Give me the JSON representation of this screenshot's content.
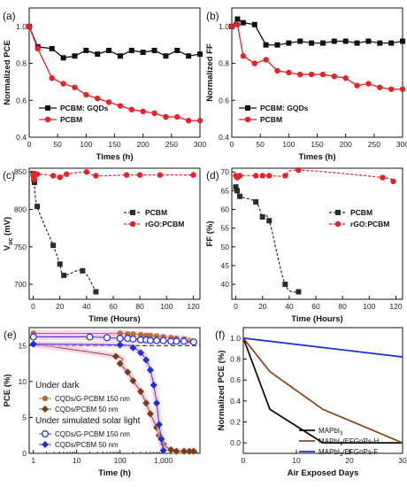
{
  "colors": {
    "black": "#111111",
    "red": "#e8202a",
    "pcbm_dark": "#2b2b2b",
    "brown": "#8a4a22",
    "blue": "#1a2ee0",
    "brown_dot": "#b86b35",
    "diamond": "#7b3d10"
  },
  "chart_data": [
    {
      "panel": "(a)",
      "type": "line",
      "xlabel": "Times (h)",
      "ylabel": "Normalized PCE",
      "xlim": [
        0,
        300
      ],
      "ylim": [
        0.4,
        1.1
      ],
      "xticks": [
        0,
        50,
        100,
        150,
        200,
        250,
        300
      ],
      "yticks": [
        0.4,
        0.6,
        0.8,
        1.0
      ],
      "legend": "lower-left",
      "grid": false,
      "series": [
        {
          "name": "PCBM: GQDs",
          "marker": "square",
          "color": "#111111",
          "x": [
            0,
            15,
            40,
            60,
            80,
            100,
            120,
            140,
            160,
            180,
            200,
            220,
            240,
            260,
            280,
            300
          ],
          "y": [
            1.0,
            0.89,
            0.88,
            0.83,
            0.84,
            0.87,
            0.85,
            0.87,
            0.84,
            0.87,
            0.86,
            0.87,
            0.84,
            0.87,
            0.84,
            0.85
          ]
        },
        {
          "name": "PCBM",
          "marker": "circle",
          "color": "#e8202a",
          "x": [
            0,
            15,
            40,
            60,
            80,
            100,
            120,
            140,
            160,
            180,
            200,
            220,
            240,
            260,
            280,
            300
          ],
          "y": [
            1.0,
            0.88,
            0.72,
            0.69,
            0.67,
            0.63,
            0.61,
            0.59,
            0.57,
            0.55,
            0.54,
            0.53,
            0.51,
            0.51,
            0.49,
            0.49
          ]
        }
      ]
    },
    {
      "panel": "(b)",
      "type": "line",
      "xlabel": "Times (h)",
      "ylabel": "Normalized FF",
      "xlim": [
        0,
        300
      ],
      "ylim": [
        0.4,
        1.1
      ],
      "xticks": [
        0,
        50,
        100,
        150,
        200,
        250,
        300
      ],
      "yticks": [
        0.4,
        0.6,
        0.8,
        1.0
      ],
      "legend": "lower-left",
      "grid": false,
      "series": [
        {
          "name": "PCBM: GQDs",
          "marker": "square",
          "color": "#111111",
          "x": [
            0,
            10,
            20,
            40,
            60,
            80,
            100,
            120,
            140,
            160,
            180,
            200,
            220,
            240,
            260,
            280,
            300
          ],
          "y": [
            1.0,
            1.04,
            1.02,
            1.01,
            0.9,
            0.9,
            0.91,
            0.92,
            0.91,
            0.91,
            0.92,
            0.92,
            0.91,
            0.92,
            0.91,
            0.91,
            0.92
          ]
        },
        {
          "name": "PCBM",
          "marker": "circle",
          "color": "#e8202a",
          "x": [
            0,
            10,
            20,
            40,
            60,
            80,
            100,
            120,
            140,
            160,
            180,
            200,
            220,
            240,
            260,
            280,
            300
          ],
          "y": [
            1.0,
            1.01,
            0.84,
            0.8,
            0.82,
            0.76,
            0.75,
            0.74,
            0.74,
            0.74,
            0.73,
            0.72,
            0.68,
            0.69,
            0.67,
            0.66,
            0.66
          ]
        }
      ]
    },
    {
      "panel": "(c)",
      "type": "line",
      "xlabel": "Time (Hours)",
      "ylabel": "V",
      "ylabel_sub": "oc",
      "ylabel_unit": " (mV)",
      "xlim": [
        -3,
        125
      ],
      "ylim": [
        680,
        855
      ],
      "xticks": [
        0,
        20,
        40,
        60,
        80,
        100,
        120
      ],
      "yticks": [
        700,
        750,
        800,
        850
      ],
      "legend": "upper-right-inside",
      "grid": false,
      "series": [
        {
          "name": "PCBM",
          "marker": "square",
          "color": "#2b2b2b",
          "dashed": true,
          "x": [
            0,
            0.5,
            1,
            3,
            15,
            20,
            23,
            37,
            47
          ],
          "y": [
            848,
            840,
            836,
            804,
            752,
            727,
            712,
            718,
            690
          ]
        },
        {
          "name": "rGO:PCBM",
          "marker": "circle",
          "color": "#e8202a",
          "dashed": true,
          "x": [
            0,
            0.5,
            1,
            3,
            15,
            20,
            25,
            40,
            47,
            70,
            80,
            95,
            120
          ],
          "y": [
            845,
            848,
            840,
            847,
            845,
            843,
            847,
            850,
            845,
            846,
            846,
            846,
            846
          ]
        }
      ]
    },
    {
      "panel": "(d)",
      "type": "line",
      "xlabel": "Time (Hours)",
      "ylabel": "FF (%)",
      "xlim": [
        -3,
        125
      ],
      "ylim": [
        36,
        71
      ],
      "xticks": [
        0,
        20,
        40,
        60,
        80,
        100,
        120
      ],
      "yticks": [
        40,
        45,
        50,
        55,
        60,
        65,
        70
      ],
      "legend": "upper-right-inside",
      "grid": false,
      "series": [
        {
          "name": "PCBM",
          "marker": "square",
          "color": "#2b2b2b",
          "dashed": true,
          "x": [
            0,
            1,
            3,
            15,
            20,
            25,
            37,
            47
          ],
          "y": [
            66,
            65,
            63.5,
            62,
            58,
            57,
            40,
            38
          ]
        },
        {
          "name": "rGO:PCBM",
          "marker": "circle",
          "color": "#e8202a",
          "dashed": true,
          "x": [
            0,
            1,
            3,
            15,
            20,
            25,
            37,
            47,
            110,
            118
          ],
          "y": [
            69,
            68.5,
            69,
            69,
            69,
            69,
            69,
            70.5,
            68.5,
            67.5
          ]
        }
      ]
    },
    {
      "panel": "(e)",
      "type": "line",
      "xlabel": "Time (h)",
      "ylabel": "PCE (%)",
      "xscale": "log",
      "xlim": [
        0.8,
        7000
      ],
      "ylim": [
        0,
        17.5
      ],
      "xticks": [
        1,
        10,
        100,
        1000
      ],
      "xticklabels": [
        "1",
        "10",
        "100",
        "1,000"
      ],
      "yticks": [
        0,
        5,
        10,
        15
      ],
      "grid": false,
      "ref_line": {
        "y": 15,
        "style": "dashed"
      },
      "annotations": [
        "Under dark",
        "Under simulated solar light"
      ],
      "series": [
        {
          "name": "CQDs/G-PCBM 150 nm",
          "group": "Under dark",
          "marker": "circle",
          "color": "#b86b35",
          "x": [
            1,
            100,
            150,
            200,
            300,
            400,
            500,
            700,
            1000,
            1500,
            2000,
            3000,
            4000,
            5000
          ],
          "y": [
            16.7,
            16.7,
            16.6,
            16.6,
            16.5,
            16.4,
            16.4,
            16.3,
            16.2,
            16.1,
            16.0,
            15.9,
            15.7,
            15.5
          ]
        },
        {
          "name": "CQDs/PCBM 50 nm",
          "group": "Under dark",
          "marker": "diamond",
          "color": "#7b3d10",
          "x": [
            1,
            80,
            100,
            150,
            200,
            300,
            400,
            500,
            700,
            800,
            1000,
            1500,
            2000,
            3000,
            4000,
            5000
          ],
          "y": [
            15.2,
            13.5,
            12.5,
            11.3,
            10.1,
            8.6,
            7.0,
            5.5,
            3.6,
            2.5,
            1.3,
            0.5,
            0.3,
            0.3,
            0.3,
            0.3
          ]
        },
        {
          "name": "CQDs/G-PCBM 150 nm",
          "group": "Under simulated solar light",
          "marker": "circle-open",
          "color": "#1a2ee0",
          "x": [
            1,
            20,
            50,
            100,
            150,
            200,
            300,
            400,
            500,
            700,
            1000,
            1500,
            2000,
            3000,
            5000
          ],
          "y": [
            16.2,
            16.2,
            16.1,
            16.0,
            16.0,
            15.9,
            15.8,
            15.8,
            15.7,
            15.7,
            15.7,
            15.6,
            15.6,
            15.6,
            15.5
          ]
        },
        {
          "name": "CQDs/PCBM 50 nm",
          "group": "Under simulated solar light",
          "marker": "diamond",
          "color": "#1a2ee0",
          "x": [
            1,
            100,
            200,
            300,
            400,
            500,
            600,
            700,
            800,
            900,
            1000
          ],
          "y": [
            15.2,
            15.1,
            14.7,
            14.0,
            13.0,
            11.6,
            9.5,
            7.0,
            4.0,
            2.0,
            0.4
          ]
        }
      ]
    },
    {
      "panel": "(f)",
      "type": "line",
      "xlabel": "Air Exposed Days",
      "ylabel": "Normalized PCE (%)",
      "xlim": [
        0,
        30
      ],
      "ylim": [
        -0.1,
        1.1
      ],
      "xticks": [
        0,
        10,
        20,
        30
      ],
      "yticks": [
        0.0,
        0.2,
        0.4,
        0.6,
        0.8,
        1.0
      ],
      "legend": "lower-right",
      "grid": false,
      "series": [
        {
          "name": "MAPbI",
          "sub": "3",
          "suffix": "",
          "color": "#111111",
          "x": [
            0,
            5,
            15,
            30
          ],
          "y": [
            1.0,
            0.32,
            0.0,
            0.0
          ]
        },
        {
          "name": "MAPbI",
          "sub": "3",
          "suffix": "/EFGnPs-H",
          "color": "#8a4a22",
          "x": [
            0,
            5,
            15,
            30
          ],
          "y": [
            1.0,
            0.68,
            0.32,
            0.0
          ]
        },
        {
          "name": "MAPbI",
          "sub": "3",
          "suffix": "/EFGnPs-F",
          "color": "#1a2ee0",
          "x": [
            0,
            30
          ],
          "y": [
            1.0,
            0.82
          ]
        }
      ]
    }
  ]
}
